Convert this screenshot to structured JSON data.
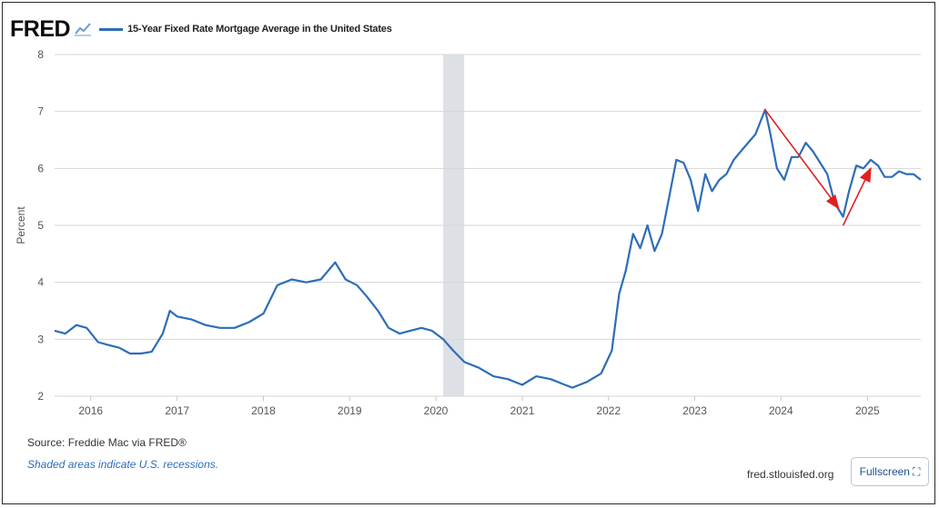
{
  "header": {
    "logo": "FRED",
    "legend_label": "15-Year Fixed Rate Mortgage Average in the United States"
  },
  "footer": {
    "source": "Source: Freddie Mac via FRED®",
    "recession_note": "Shaded areas indicate U.S. recessions.",
    "site": "fred.stlouisfed.org",
    "fullscreen_label": "Fullscreen"
  },
  "colors": {
    "series": "#2d6db8",
    "annotation_arrows": "#e02020",
    "recession_band": "#dde1e6",
    "gridline": "#d6d6d6"
  },
  "chart_data": {
    "type": "line",
    "title": "15-Year Fixed Rate Mortgage Average in the United States",
    "xlabel": "",
    "ylabel": "Percent",
    "ylim": [
      2,
      8
    ],
    "xlim": [
      "2015-08-01",
      "2025-08-15"
    ],
    "yticks": [
      2,
      3,
      4,
      5,
      6,
      7,
      8
    ],
    "xticks": [
      "2016",
      "2017",
      "2018",
      "2019",
      "2020",
      "2021",
      "2022",
      "2023",
      "2024",
      "2025"
    ],
    "grid": "horizontal",
    "recessions": [
      {
        "start": "2020-02-01",
        "end": "2020-04-30"
      }
    ],
    "series": [
      {
        "name": "15-Year Fixed Rate Mortgage Average in the United States",
        "x": [
          "2015-08-01",
          "2015-09-15",
          "2015-11-01",
          "2015-12-15",
          "2016-02-01",
          "2016-03-15",
          "2016-05-01",
          "2016-06-15",
          "2016-08-01",
          "2016-09-15",
          "2016-11-01",
          "2016-12-01",
          "2017-01-01",
          "2017-03-01",
          "2017-05-01",
          "2017-07-01",
          "2017-09-01",
          "2017-11-01",
          "2018-01-01",
          "2018-03-01",
          "2018-05-01",
          "2018-07-01",
          "2018-09-01",
          "2018-11-01",
          "2018-12-15",
          "2019-02-01",
          "2019-03-15",
          "2019-05-01",
          "2019-06-15",
          "2019-08-01",
          "2019-09-15",
          "2019-11-01",
          "2019-12-15",
          "2020-02-01",
          "2020-03-15",
          "2020-05-01",
          "2020-07-01",
          "2020-09-01",
          "2020-11-01",
          "2021-01-01",
          "2021-03-01",
          "2021-05-01",
          "2021-07-01",
          "2021-08-01",
          "2021-10-01",
          "2021-12-01",
          "2022-01-15",
          "2022-02-15",
          "2022-03-15",
          "2022-04-15",
          "2022-05-15",
          "2022-06-15",
          "2022-07-15",
          "2022-08-15",
          "2022-09-15",
          "2022-10-15",
          "2022-11-15",
          "2022-12-15",
          "2023-01-15",
          "2023-02-15",
          "2023-03-15",
          "2023-04-15",
          "2023-05-15",
          "2023-06-15",
          "2023-07-15",
          "2023-08-15",
          "2023-09-15",
          "2023-10-26",
          "2023-11-15",
          "2023-12-15",
          "2024-01-15",
          "2024-02-15",
          "2024-03-15",
          "2024-04-15",
          "2024-05-15",
          "2024-06-15",
          "2024-07-15",
          "2024-08-15",
          "2024-09-20",
          "2024-10-15",
          "2024-11-15",
          "2024-12-15",
          "2025-01-15",
          "2025-02-15",
          "2025-03-15",
          "2025-04-15",
          "2025-05-15",
          "2025-06-15",
          "2025-07-15",
          "2025-08-15"
        ],
        "values": [
          3.15,
          3.1,
          3.25,
          3.2,
          2.95,
          2.9,
          2.85,
          2.75,
          2.75,
          2.78,
          3.1,
          3.5,
          3.4,
          3.35,
          3.25,
          3.2,
          3.2,
          3.3,
          3.45,
          3.95,
          4.05,
          4.0,
          4.05,
          4.35,
          4.05,
          3.95,
          3.75,
          3.5,
          3.2,
          3.1,
          3.15,
          3.2,
          3.15,
          3.0,
          2.8,
          2.6,
          2.5,
          2.35,
          2.3,
          2.2,
          2.35,
          2.3,
          2.2,
          2.15,
          2.25,
          2.4,
          2.8,
          3.8,
          4.2,
          4.85,
          4.6,
          5.0,
          4.55,
          4.85,
          5.5,
          6.15,
          6.1,
          5.8,
          5.25,
          5.9,
          5.6,
          5.8,
          5.9,
          6.15,
          6.3,
          6.45,
          6.6,
          7.03,
          6.65,
          6.0,
          5.8,
          6.2,
          6.2,
          6.45,
          6.3,
          6.1,
          5.9,
          5.4,
          5.15,
          5.6,
          6.05,
          6.0,
          6.15,
          6.05,
          5.85,
          5.85,
          5.95,
          5.9,
          5.9,
          5.8
        ]
      }
    ],
    "annotations": [
      {
        "type": "arrow",
        "from": {
          "x": "2023-10-26",
          "y": 7.03
        },
        "to": {
          "x": "2024-09-01",
          "y": 5.3
        }
      },
      {
        "type": "arrow",
        "from": {
          "x": "2024-09-20",
          "y": 5.0
        },
        "to": {
          "x": "2025-01-15",
          "y": 6.0
        }
      }
    ]
  }
}
